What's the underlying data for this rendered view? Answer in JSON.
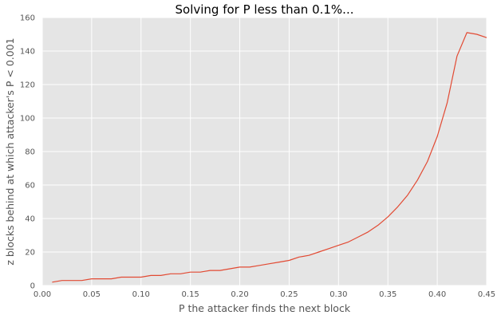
{
  "chart_data": {
    "type": "line",
    "title": "Solving for P less than 0.1%...",
    "xlabel": "P the attacker finds the next block",
    "ylabel": "z blocks behind at which attacker's P < 0.001",
    "xlim": [
      0.0,
      0.45
    ],
    "ylim": [
      0,
      160
    ],
    "x_ticks": [
      "0.00",
      "0.05",
      "0.10",
      "0.15",
      "0.20",
      "0.25",
      "0.30",
      "0.35",
      "0.40",
      "0.45"
    ],
    "y_ticks": [
      "0",
      "20",
      "40",
      "60",
      "80",
      "100",
      "120",
      "140",
      "160"
    ],
    "grid": true,
    "background": "#e5e5e5",
    "grid_color": "#ffffff",
    "line_color": "#e24a33",
    "series": [
      {
        "x": [
          0.01,
          0.02,
          0.03,
          0.04,
          0.05,
          0.06,
          0.07,
          0.08,
          0.09,
          0.1,
          0.11,
          0.12,
          0.13,
          0.14,
          0.15,
          0.16,
          0.17,
          0.18,
          0.19,
          0.2,
          0.21,
          0.22,
          0.23,
          0.24,
          0.25,
          0.26,
          0.27,
          0.28,
          0.29,
          0.3,
          0.31,
          0.32,
          0.33,
          0.34,
          0.35,
          0.36,
          0.37,
          0.38,
          0.39,
          0.4,
          0.41,
          0.42,
          0.43,
          0.44,
          0.45
        ],
        "values": [
          2,
          3,
          3,
          3,
          4,
          4,
          4,
          5,
          5,
          5,
          6,
          6,
          7,
          7,
          8,
          8,
          9,
          9,
          10,
          11,
          11,
          12,
          13,
          14,
          15,
          17,
          18,
          20,
          22,
          24,
          26,
          29,
          32,
          36,
          41,
          47,
          54,
          63,
          74,
          89,
          109,
          137,
          151,
          150,
          148
        ]
      }
    ]
  }
}
